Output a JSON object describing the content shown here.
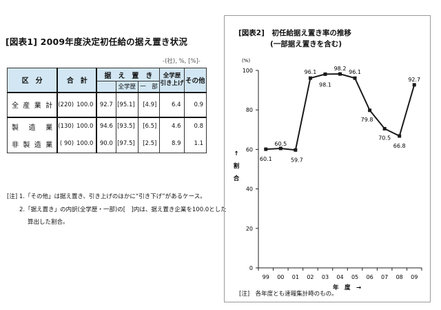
{
  "fig1": {
    "title": "[図表1] 2009年度決定初任給の据え置き状況",
    "unit": "-(社), %, [%]-",
    "header": {
      "category": "区　分",
      "total": "合　計",
      "hold": "据　え　置　き",
      "hold_all_edu": "全学歴",
      "hold_partial": "一　部",
      "raise_line1": "全学歴",
      "raise_line2": "引き上げ",
      "other": "その他"
    },
    "rows": [
      {
        "label": "全産業計",
        "count": "(220)",
        "total": "100.0",
        "hold": "92.7",
        "all_edu": "[95.1]",
        "partial": "[4.9]",
        "raise": "6.4",
        "other": "0.9"
      },
      {
        "label": "製造業",
        "count": "(130)",
        "total": "100.0",
        "hold": "94.6",
        "all_edu": "[93.5]",
        "partial": "[6.5]",
        "raise": "4.6",
        "other": "0.8"
      },
      {
        "label": "非製造業",
        "count": "( 90)",
        "total": "100.0",
        "hold": "90.0",
        "all_edu": "[97.5]",
        "partial": "[2.5]",
        "raise": "8.9",
        "other": "1.1"
      }
    ],
    "notes": [
      "[注] 1.「その他」は据え置き、引き上げのほかに“引き下げ”があるケース。",
      "2.「据え置き」の内訳(全学歴・一部)の[　]内は、据え置き企業を100.0とした",
      "算出した割合。"
    ]
  },
  "fig2": {
    "title_line1": "[図表2]　初任給据え置き率の推移",
    "title_line2": "(一部据え置きを含む)",
    "note": "[注]　各年度とも速報集計時のもの。"
  },
  "chart_data": {
    "type": "line",
    "x": [
      "99",
      "00",
      "01",
      "02",
      "03",
      "04",
      "05",
      "06",
      "07",
      "08",
      "09"
    ],
    "series": [
      {
        "values": [
          60.1,
          60.5,
          59.7,
          96.1,
          98.1,
          98.2,
          96.1,
          79.8,
          70.5,
          66.8,
          92.7
        ]
      }
    ],
    "ylim": [
      0,
      100
    ],
    "yticks": [
      0,
      20,
      40,
      60,
      80,
      100
    ],
    "ylabel_unit": "(%)",
    "ylabel": [
      "↑",
      "割",
      "合"
    ],
    "xlabel": "年　度　→",
    "color": "#1a1a1a",
    "grid": false
  }
}
